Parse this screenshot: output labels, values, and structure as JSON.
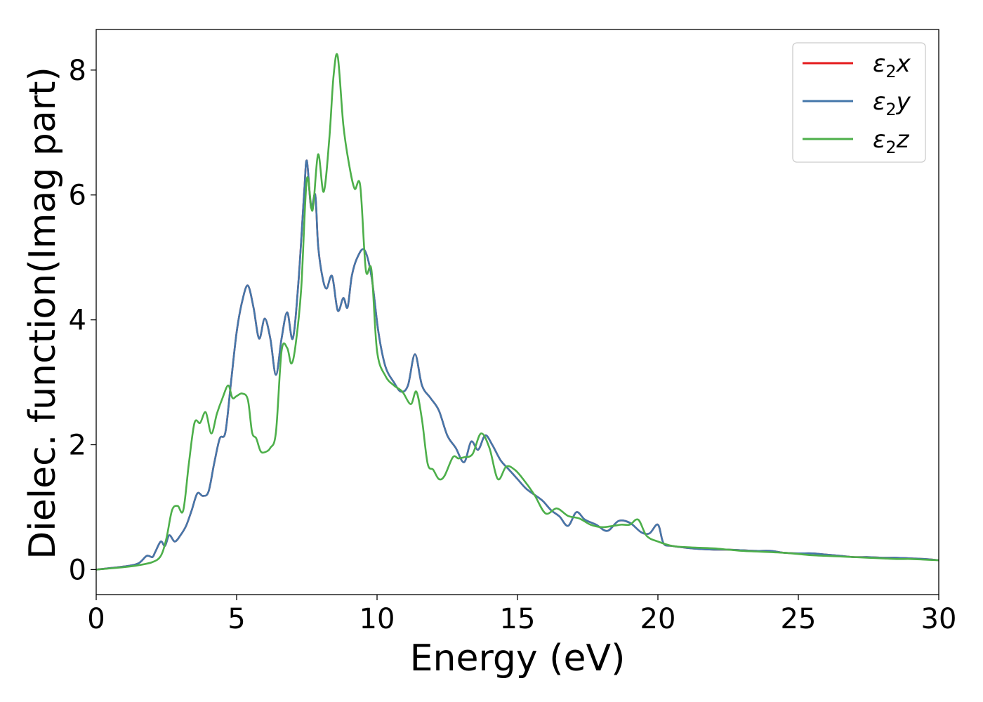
{
  "chart_data": {
    "type": "line",
    "title": "",
    "xlabel": "Energy (eV)",
    "ylabel": "Dielec. function(Imag part)",
    "xlim": [
      0,
      30
    ],
    "ylim": [
      -0.4,
      8.65
    ],
    "xticks": [
      0,
      5,
      10,
      15,
      20,
      25,
      30
    ],
    "yticks": [
      0,
      2,
      4,
      6,
      8
    ],
    "grid": false,
    "legend_position": "top-right",
    "series": [
      {
        "name": "ε2x",
        "legend_base": "ε",
        "legend_sub": "2",
        "legend_var": "x",
        "color": "#e41a1c",
        "x": [
          0,
          1,
          1.5,
          1.8,
          2,
          2.1,
          2.3,
          2.45,
          2.6,
          2.8,
          3,
          3.2,
          3.4,
          3.6,
          3.8,
          4,
          4.2,
          4.4,
          4.6,
          4.8,
          5,
          5.2,
          5.4,
          5.6,
          5.8,
          6,
          6.2,
          6.4,
          6.6,
          6.8,
          7,
          7.2,
          7.4,
          7.5,
          7.65,
          7.8,
          7.9,
          8.05,
          8.2,
          8.4,
          8.6,
          8.8,
          8.95,
          9.1,
          9.3,
          9.55,
          9.8,
          10.05,
          10.3,
          10.6,
          10.85,
          11.1,
          11.35,
          11.6,
          11.9,
          12.2,
          12.5,
          12.8,
          13.1,
          13.35,
          13.6,
          13.85,
          14.1,
          14.4,
          14.7,
          15,
          15.3,
          15.6,
          15.9,
          16.2,
          16.5,
          16.8,
          17.1,
          17.4,
          17.8,
          18.2,
          18.6,
          19,
          19.4,
          19.7,
          20,
          20.2,
          20.5,
          21,
          21.5,
          22,
          22.5,
          23,
          23.5,
          24,
          24.5,
          25,
          25.5,
          26,
          26.5,
          27,
          27.5,
          28,
          28.5,
          29,
          29.5,
          30
        ],
        "y": [
          0,
          0.05,
          0.1,
          0.22,
          0.2,
          0.28,
          0.45,
          0.38,
          0.55,
          0.45,
          0.55,
          0.7,
          0.95,
          1.22,
          1.18,
          1.25,
          1.7,
          2.1,
          2.2,
          3,
          3.8,
          4.3,
          4.55,
          4.2,
          3.7,
          4.02,
          3.7,
          3.12,
          3.7,
          4.12,
          3.7,
          4.6,
          6,
          6.55,
          5.8,
          6,
          5.2,
          4.7,
          4.5,
          4.7,
          4.15,
          4.35,
          4.2,
          4.7,
          5,
          5.12,
          4.7,
          3.8,
          3.25,
          3.0,
          2.85,
          2.95,
          3.45,
          2.95,
          2.75,
          2.55,
          2.15,
          1.95,
          1.72,
          2.05,
          1.92,
          2.15,
          2,
          1.75,
          1.6,
          1.45,
          1.3,
          1.2,
          1.1,
          0.95,
          0.85,
          0.7,
          0.92,
          0.8,
          0.72,
          0.62,
          0.78,
          0.75,
          0.6,
          0.58,
          0.72,
          0.42,
          0.38,
          0.35,
          0.33,
          0.32,
          0.32,
          0.31,
          0.3,
          0.3,
          0.27,
          0.26,
          0.26,
          0.24,
          0.22,
          0.2,
          0.2,
          0.19,
          0.19,
          0.18,
          0.17,
          0.15
        ]
      },
      {
        "name": "ε2y",
        "legend_base": "ε",
        "legend_sub": "2",
        "legend_var": "y",
        "color": "#4477aa",
        "x": [
          0,
          1,
          1.5,
          1.8,
          2,
          2.1,
          2.3,
          2.45,
          2.6,
          2.8,
          3,
          3.2,
          3.4,
          3.6,
          3.8,
          4,
          4.2,
          4.4,
          4.6,
          4.8,
          5,
          5.2,
          5.4,
          5.6,
          5.8,
          6,
          6.2,
          6.4,
          6.6,
          6.8,
          7,
          7.2,
          7.4,
          7.5,
          7.65,
          7.8,
          7.9,
          8.05,
          8.2,
          8.4,
          8.6,
          8.8,
          8.95,
          9.1,
          9.3,
          9.55,
          9.8,
          10.05,
          10.3,
          10.6,
          10.85,
          11.1,
          11.35,
          11.6,
          11.9,
          12.2,
          12.5,
          12.8,
          13.1,
          13.35,
          13.6,
          13.85,
          14.1,
          14.4,
          14.7,
          15,
          15.3,
          15.6,
          15.9,
          16.2,
          16.5,
          16.8,
          17.1,
          17.4,
          17.8,
          18.2,
          18.6,
          19,
          19.4,
          19.7,
          20,
          20.2,
          20.5,
          21,
          21.5,
          22,
          22.5,
          23,
          23.5,
          24,
          24.5,
          25,
          25.5,
          26,
          26.5,
          27,
          27.5,
          28,
          28.5,
          29,
          29.5,
          30
        ],
        "y": [
          0,
          0.05,
          0.1,
          0.22,
          0.2,
          0.28,
          0.45,
          0.38,
          0.55,
          0.45,
          0.55,
          0.7,
          0.95,
          1.22,
          1.18,
          1.25,
          1.7,
          2.1,
          2.2,
          3,
          3.8,
          4.3,
          4.55,
          4.2,
          3.7,
          4.02,
          3.7,
          3.12,
          3.7,
          4.12,
          3.7,
          4.6,
          6,
          6.55,
          5.8,
          6,
          5.2,
          4.7,
          4.5,
          4.7,
          4.15,
          4.35,
          4.2,
          4.7,
          5,
          5.12,
          4.7,
          3.8,
          3.25,
          3.0,
          2.85,
          2.95,
          3.45,
          2.95,
          2.75,
          2.55,
          2.15,
          1.95,
          1.72,
          2.05,
          1.92,
          2.15,
          2,
          1.75,
          1.6,
          1.45,
          1.3,
          1.2,
          1.1,
          0.95,
          0.85,
          0.7,
          0.92,
          0.8,
          0.72,
          0.62,
          0.78,
          0.75,
          0.6,
          0.58,
          0.72,
          0.42,
          0.38,
          0.35,
          0.33,
          0.32,
          0.32,
          0.31,
          0.3,
          0.3,
          0.27,
          0.26,
          0.26,
          0.24,
          0.22,
          0.2,
          0.2,
          0.19,
          0.19,
          0.18,
          0.17,
          0.15
        ]
      },
      {
        "name": "ε2z",
        "legend_base": "ε",
        "legend_sub": "2",
        "legend_var": "z",
        "color": "#4daf4a",
        "x": [
          0,
          1,
          1.5,
          2,
          2.3,
          2.5,
          2.7,
          2.9,
          3.1,
          3.3,
          3.5,
          3.7,
          3.9,
          4.1,
          4.3,
          4.5,
          4.7,
          4.85,
          5,
          5.2,
          5.4,
          5.55,
          5.7,
          5.85,
          6,
          6.2,
          6.4,
          6.6,
          6.8,
          6.95,
          7.1,
          7.3,
          7.5,
          7.7,
          7.9,
          8.1,
          8.3,
          8.45,
          8.6,
          8.8,
          9,
          9.2,
          9.4,
          9.6,
          9.8,
          10,
          10.3,
          10.6,
          10.9,
          11.2,
          11.4,
          11.6,
          11.8,
          12,
          12.2,
          12.4,
          12.7,
          12.9,
          13.1,
          13.4,
          13.7,
          14,
          14.3,
          14.6,
          14.9,
          15.2,
          15.6,
          16,
          16.4,
          16.8,
          17.2,
          17.6,
          18,
          18.4,
          18.7,
          19,
          19.3,
          19.6,
          20,
          20.5,
          21,
          21.5,
          22,
          22.5,
          23,
          23.5,
          24,
          24.5,
          25,
          25.5,
          26,
          26.5,
          27,
          27.5,
          28,
          28.5,
          29,
          29.5,
          30
        ],
        "y": [
          0,
          0.04,
          0.07,
          0.12,
          0.22,
          0.5,
          0.95,
          1.02,
          0.95,
          1.7,
          2.35,
          2.35,
          2.52,
          2.18,
          2.5,
          2.75,
          2.95,
          2.75,
          2.78,
          2.82,
          2.72,
          2.2,
          2.1,
          1.9,
          1.88,
          1.95,
          2.2,
          3.5,
          3.55,
          3.3,
          3.6,
          4.5,
          6.25,
          5.75,
          6.65,
          6.05,
          6.9,
          7.9,
          8.22,
          7.12,
          6.5,
          6.1,
          6.15,
          4.8,
          4.8,
          3.5,
          3.1,
          2.95,
          2.85,
          2.65,
          2.85,
          2.4,
          1.7,
          1.6,
          1.45,
          1.5,
          1.8,
          1.78,
          1.8,
          1.85,
          2.18,
          1.95,
          1.45,
          1.65,
          1.6,
          1.45,
          1.2,
          0.9,
          0.98,
          0.86,
          0.82,
          0.72,
          0.68,
          0.7,
          0.72,
          0.72,
          0.8,
          0.54,
          0.45,
          0.38,
          0.36,
          0.35,
          0.34,
          0.32,
          0.3,
          0.29,
          0.28,
          0.27,
          0.25,
          0.23,
          0.22,
          0.21,
          0.2,
          0.19,
          0.18,
          0.17,
          0.17,
          0.16,
          0.15
        ]
      }
    ]
  }
}
